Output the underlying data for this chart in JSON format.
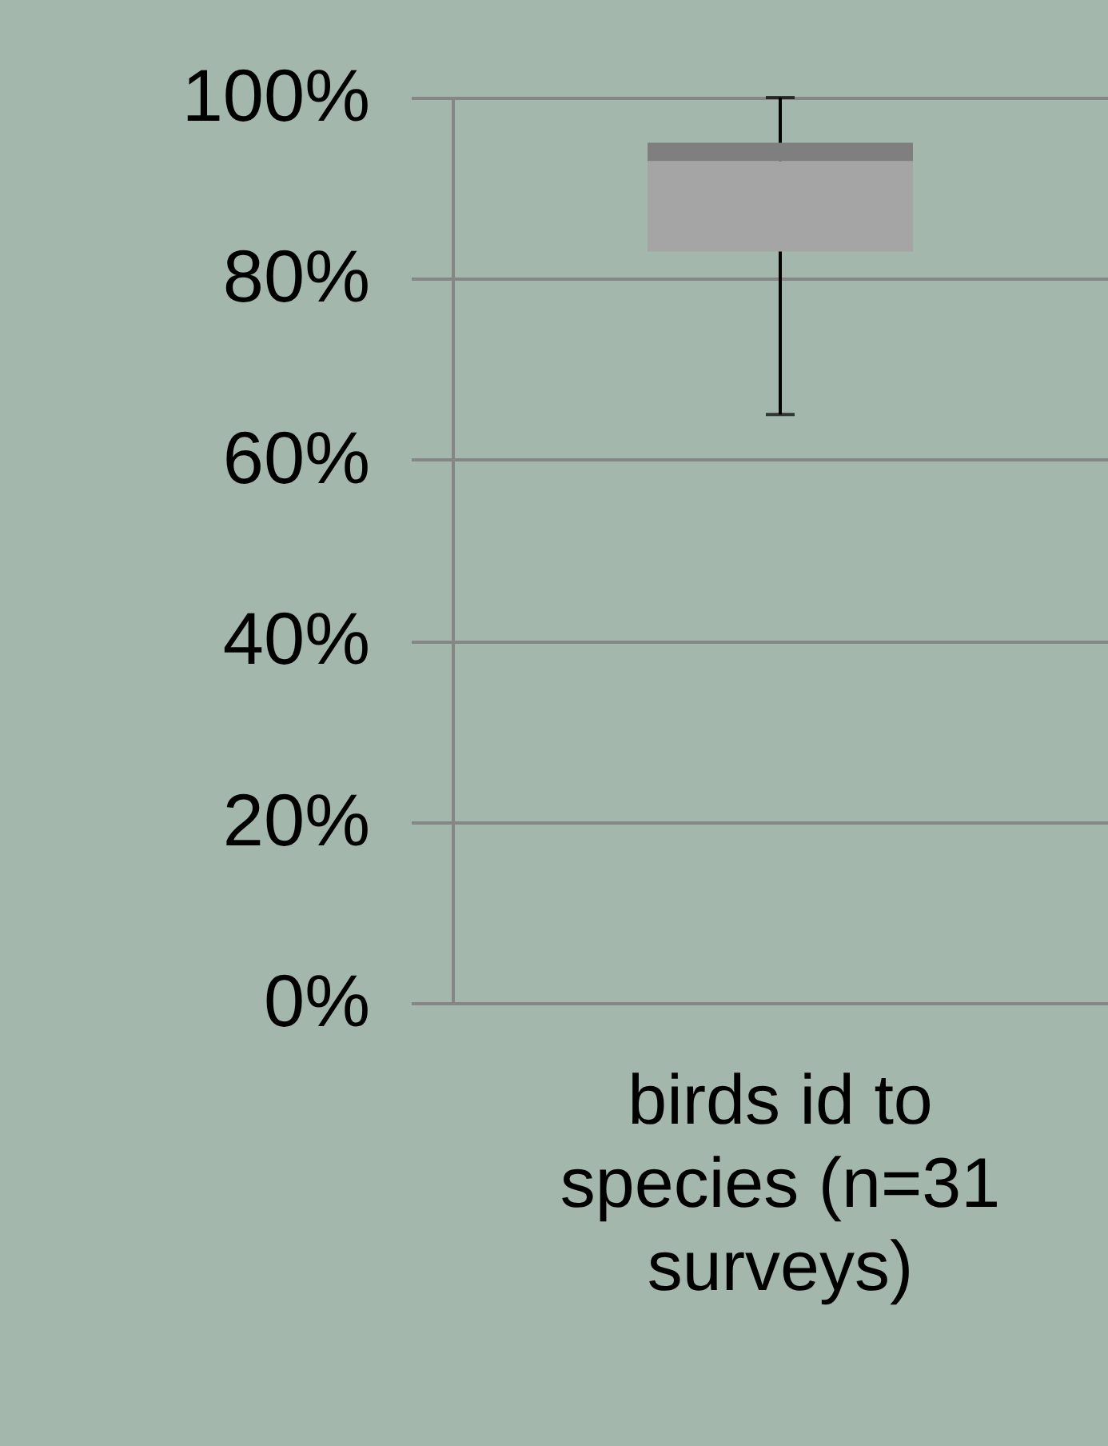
{
  "chart_data": {
    "type": "box",
    "categories": [
      "birds id to species (n=31 surveys)"
    ],
    "series": [
      {
        "color": "#a5a5a5",
        "boxes": [
          {
            "low": 65,
            "q1": 83,
            "median": 93,
            "q3": 95,
            "high": 100
          }
        ]
      }
    ],
    "ylim": [
      0,
      100
    ],
    "yticks": [
      {
        "value": 0,
        "label": "0%"
      },
      {
        "value": 20,
        "label": "20%"
      },
      {
        "value": 40,
        "label": "40%"
      },
      {
        "value": 60,
        "label": "60%"
      },
      {
        "value": 80,
        "label": "80%"
      },
      {
        "value": 100,
        "label": "100%"
      }
    ],
    "grid": "y"
  }
}
